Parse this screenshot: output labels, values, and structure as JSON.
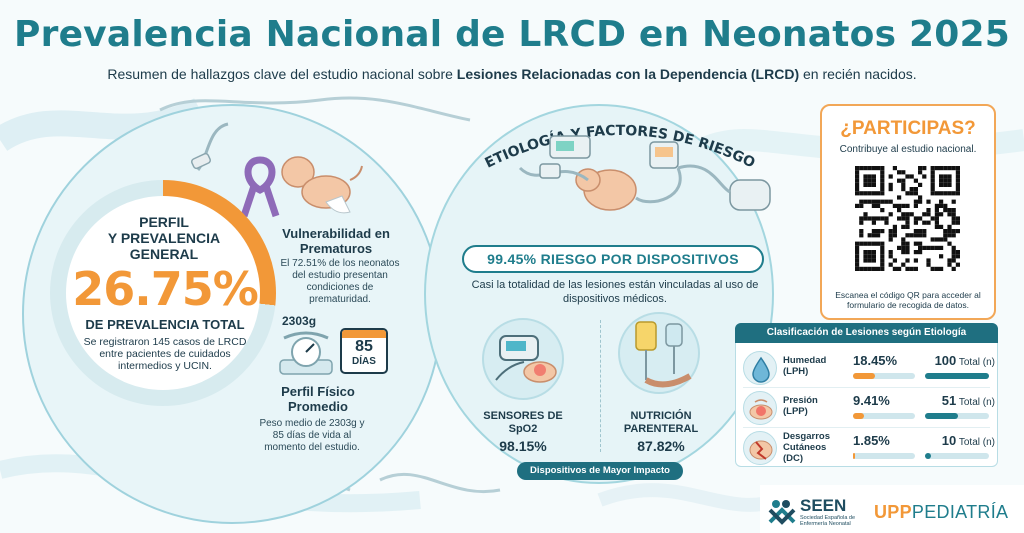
{
  "header": {
    "title": "Prevalencia Nacional de LRCD en Neonatos 2025",
    "subtitle_pre": "Resumen de hallazgos clave del estudio nacional sobre ",
    "subtitle_bold": "Lesiones Relacionadas con la Dependencia (LRCD)",
    "subtitle_post": " en recién nacidos."
  },
  "profile": {
    "heading_line1": "PERFIL",
    "heading_line2": "Y PREVALENCIA",
    "heading_line3": "GENERAL",
    "prevalence_value": "26.75%",
    "prevalence_fraction": 0.2675,
    "prevalence_label": "DE PREVALENCIA TOTAL",
    "note": "Se registraron 145 casos de LRCD entre pacientes de cuidados intermedios y UCIN."
  },
  "vulnerability": {
    "title": "Vulnerabilidad en Prematuros",
    "text": "El 72.51% de los neonatos del estudio presentan condiciones de prematuridad."
  },
  "physical": {
    "weight": "2303g",
    "days_number": "85",
    "days_unit": "DÍAS",
    "title": "Perfil Físico Promedio",
    "text": "Peso medio de 2303g y 85 días de vida al momento del estudio."
  },
  "etiology": {
    "title": "ETIOLOGÍA Y FACTORES DE RIESGO",
    "risk_pill": "99.45% RIESGO POR DISPOSITIVOS",
    "risk_desc": "Casi la totalidad de las lesiones están vinculadas al uso de dispositivos médicos.",
    "devices": [
      {
        "label": "SENSORES DE SpO2",
        "value": "98.15%"
      },
      {
        "label": "NUTRICIÓN PARENTERAL",
        "value": "87.82%"
      }
    ],
    "impact_label": "Dispositivos de Mayor Impacto"
  },
  "participate": {
    "title": "¿PARTICIPAS?",
    "subtitle": "Contribuye al estudio nacional.",
    "note": "Escanea el código QR para acceder al formulario de recogida de datos."
  },
  "classification": {
    "title": "Clasificación de Lesiones según Etiología",
    "total_suffix": "Total (n)",
    "rows": [
      {
        "name": "Humedad (LPH)",
        "icon": "water-drop-icon",
        "pct": "18.45%",
        "pct_value": 18.45,
        "total": "100",
        "total_value": 100
      },
      {
        "name": "Presión (LPP)",
        "icon": "pressure-skin-icon",
        "pct": "9.41%",
        "pct_value": 9.41,
        "total": "51",
        "total_value": 51
      },
      {
        "name": "Desgarros Cutáneos (DC)",
        "icon": "skin-tear-icon",
        "pct": "1.85%",
        "pct_value": 1.85,
        "total": "10",
        "total_value": 10
      }
    ]
  },
  "logos": {
    "seen_name": "SEEN",
    "seen_sub": "Sociedad Española de Enfermería Neonatal",
    "upp_a": "UPP",
    "upp_b": "PEDIATRÍA"
  },
  "colors": {
    "accent_teal": "#1f7d8c",
    "accent_orange": "#f29838"
  }
}
